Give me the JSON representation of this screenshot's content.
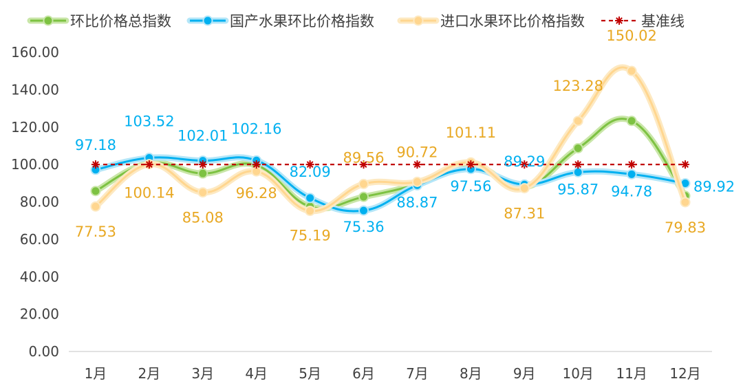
{
  "chart_data": {
    "type": "line",
    "title": "",
    "xlabel": "",
    "ylabel": "",
    "categories": [
      "1月",
      "2月",
      "3月",
      "4月",
      "5月",
      "6月",
      "7月",
      "8月",
      "9月",
      "10月",
      "11月",
      "12月"
    ],
    "ylim": [
      0,
      160
    ],
    "ytick_step": 20,
    "ytick_decimals": 2,
    "grid": false,
    "smooth": true,
    "legend": {
      "position": "top"
    },
    "series": [
      {
        "name": "环比价格总指数",
        "color": "#7dc242",
        "glow_color": "#c9e6a8",
        "marker": "circle",
        "show_labels": false,
        "values": [
          85.8,
          100.6,
          95.2,
          99.6,
          77.5,
          82.7,
          89.5,
          100.0,
          87.8,
          108.7,
          123.3,
          83.2
        ]
      },
      {
        "name": "国产水果环比价格指数",
        "color": "#00b0f0",
        "glow_color": "#b4e6f8",
        "marker": "circle",
        "show_labels": true,
        "label_color": "#00b0f0",
        "values": [
          97.18,
          103.52,
          102.01,
          102.16,
          82.09,
          75.36,
          88.87,
          97.56,
          89.29,
          95.87,
          94.78,
          89.92
        ]
      },
      {
        "name": "进口水果环比价格指数",
        "color": "#ffd68f",
        "glow_color": "#fde9c2",
        "marker": "circle",
        "show_labels": true,
        "label_color": "#e8a823",
        "values": [
          77.53,
          100.14,
          85.08,
          96.28,
          75.19,
          89.56,
          90.72,
          101.11,
          87.31,
          123.28,
          150.02,
          79.83
        ]
      },
      {
        "name": "基准线",
        "color": "#c00000",
        "marker": "asterisk",
        "dashed": true,
        "show_labels": false,
        "values": [
          100,
          100,
          100,
          100,
          100,
          100,
          100,
          100,
          100,
          100,
          100,
          100
        ]
      }
    ]
  }
}
